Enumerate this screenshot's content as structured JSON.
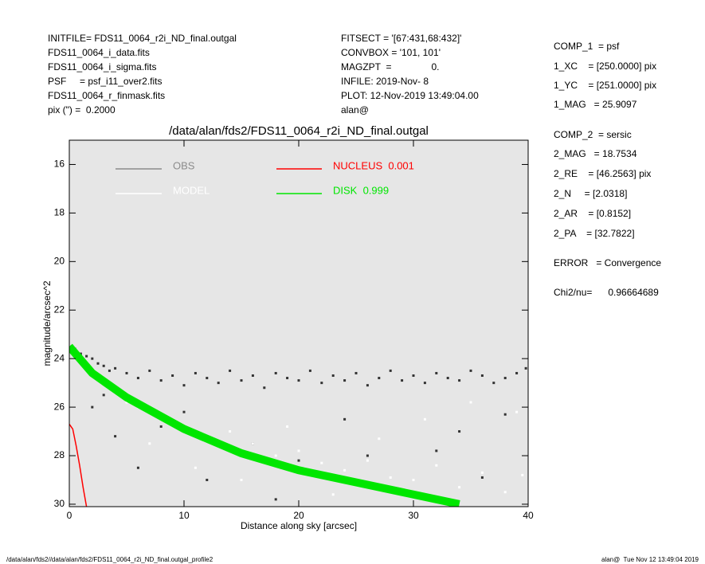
{
  "header": {
    "left": [
      "INITFILE= FDS11_0064_r2i_ND_final.outgal",
      "FDS11_0064_i_data.fits",
      "FDS11_0064_i_sigma.fits",
      "PSF     = psf_i11_over2.fits",
      "FDS11_0064_r_finmask.fits",
      "pix (\") =  0.2000"
    ],
    "middle": [
      "FITSECT = '[67:431,68:432]'",
      "CONVBOX = '101, 101'",
      "MAGZPT  =               0.",
      "INFILE: 2019-Nov- 8",
      "PLOT: 12-Nov-2019 13:49:04.00",
      "alan@"
    ],
    "right": [
      "COMP_1  = psf",
      "1_XC    = [250.0000] pix",
      "1_YC    = [251.0000] pix",
      "1_MAG   = 25.9097",
      "COMP_2  = sersic",
      "2_MAG   = 18.7534",
      "2_RE    = [46.2563] pix",
      "2_N     = [2.0318]",
      "2_AR    = [0.8152]",
      "2_PA    = [32.7822]",
      "ERROR   = Convergence",
      "Chi2/nu=      0.96664689"
    ]
  },
  "footer": {
    "left": "/data/alan/fds2//data/alan/fds2/FDS11_0064_r2i_ND_final.outgal_profile2",
    "right": "alan@  Tue Nov 12 13:49:04 2019"
  },
  "chart_data": {
    "type": "scatter",
    "title": "/data/alan/fds2/FDS11_0064_r2i_ND_final.outgal",
    "x_label": "Distance along sky [arcsec]",
    "y_label": "magnitude/arcsec^2",
    "xlim": [
      0,
      40
    ],
    "ylim": [
      30.1,
      15
    ],
    "xticks": [
      0,
      10,
      20,
      30,
      40
    ],
    "yticks": [
      16,
      18,
      20,
      22,
      24,
      26,
      28,
      30
    ],
    "background": "#e6e6e6",
    "series": [
      {
        "name": "OBS",
        "color": "#8c8c8c",
        "point_color": "#333333",
        "kind": "points",
        "x": [
          0.2,
          0.5,
          1,
          1.5,
          2,
          2.5,
          3,
          3.5,
          4,
          5,
          6,
          7,
          8,
          9,
          10,
          11,
          12,
          13,
          14,
          15,
          16,
          17,
          18,
          19,
          20,
          21,
          22,
          23,
          24,
          25,
          26,
          27,
          28,
          29,
          30,
          31,
          32,
          33,
          34,
          35,
          36,
          37,
          38,
          39,
          39.8,
          2,
          4,
          6,
          8,
          12,
          16,
          20,
          24,
          28,
          32,
          36,
          38,
          3,
          10,
          18,
          26,
          34
        ],
        "values": [
          23.5,
          23.6,
          23.8,
          23.9,
          24.0,
          24.2,
          24.3,
          24.5,
          24.4,
          24.6,
          24.8,
          24.5,
          24.9,
          24.7,
          25.1,
          24.6,
          24.8,
          25.0,
          24.5,
          24.9,
          24.7,
          25.2,
          24.6,
          24.8,
          24.9,
          24.5,
          25.0,
          24.7,
          24.9,
          24.6,
          25.1,
          24.8,
          24.5,
          24.9,
          24.7,
          25.0,
          24.6,
          24.8,
          24.9,
          24.5,
          24.7,
          25.0,
          24.8,
          24.6,
          24.4,
          26.0,
          27.2,
          28.5,
          26.8,
          29.0,
          27.5,
          28.2,
          26.5,
          29.5,
          27.8,
          28.9,
          26.3,
          25.5,
          26.2,
          29.8,
          28.0,
          27.0
        ]
      },
      {
        "name": "MODEL",
        "color": "#ffffff",
        "point_color": "#ffffff",
        "kind": "points",
        "x": [
          1,
          2,
          3,
          4,
          5,
          6,
          8,
          10,
          12,
          14,
          16,
          18,
          20,
          22,
          24,
          26,
          28,
          30,
          32,
          34,
          36,
          38,
          39.5,
          7,
          11,
          15,
          19,
          23,
          27,
          31,
          35,
          39
        ],
        "values": [
          24.0,
          24.5,
          25.0,
          25.4,
          25.8,
          26.0,
          26.5,
          26.9,
          27.2,
          27.0,
          27.5,
          28.0,
          27.8,
          28.3,
          28.6,
          28.2,
          28.9,
          29.0,
          28.4,
          29.3,
          28.7,
          29.5,
          28.8,
          27.5,
          28.5,
          29.0,
          26.8,
          29.6,
          27.3,
          26.5,
          25.8,
          26.2
        ]
      },
      {
        "name": "NUCLEUS  0.001",
        "color": "#ff0000",
        "kind": "line",
        "x": [
          0,
          0.3,
          0.6,
          0.9,
          1.2,
          1.5
        ],
        "values": [
          26.7,
          26.9,
          27.6,
          28.4,
          29.3,
          30.1
        ]
      },
      {
        "name": "DISK  0.999",
        "color": "#00e600",
        "kind": "band",
        "x": [
          0,
          2,
          5,
          10,
          15,
          20,
          25,
          30,
          34
        ],
        "values": [
          23.5,
          24.6,
          25.6,
          26.9,
          27.9,
          28.6,
          29.1,
          29.6,
          30.0
        ]
      }
    ]
  }
}
